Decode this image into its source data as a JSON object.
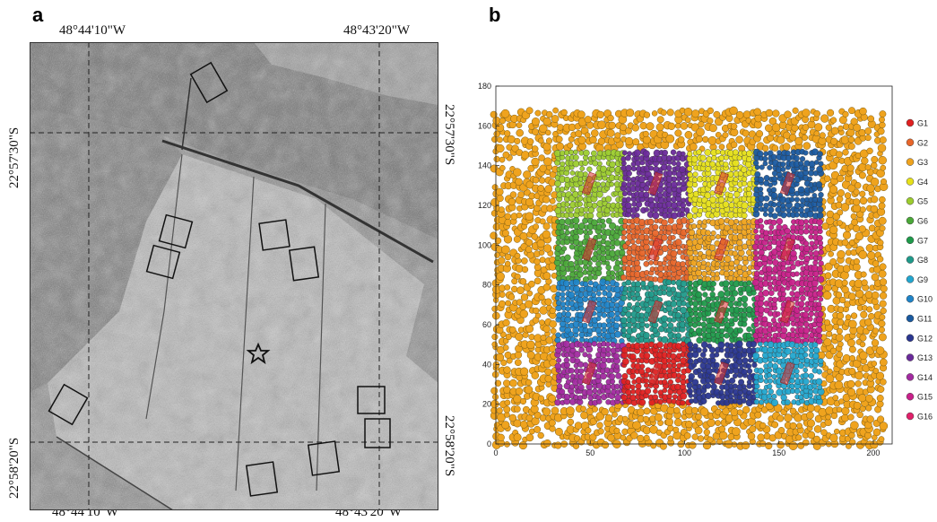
{
  "panel_a": {
    "letter": "a",
    "labels": {
      "top_left": "48°44'10\"W",
      "top_right": "48°43'20\"W",
      "bottom_left": "48°44'10\"W",
      "bottom_right": "48°43'20\"W",
      "left_top": "22°57'30\"S",
      "left_bottom": "22°58'20\"S",
      "right_top": "22°57'30\"S",
      "right_bottom": "22°58'20\"S"
    },
    "background": "grayscale shaded-relief satellite image",
    "marker": "star-icon",
    "plot_count": 13
  },
  "panel_b": {
    "letter": "b"
  },
  "chart_data": {
    "type": "scatter",
    "title": "",
    "xlabel": "",
    "ylabel": "",
    "xlim": [
      0,
      210
    ],
    "ylim": [
      0,
      180
    ],
    "xticks": [
      0,
      50,
      100,
      150,
      200
    ],
    "yticks": [
      0,
      20,
      40,
      60,
      80,
      100,
      120,
      140,
      160,
      180
    ],
    "legend_position": "right",
    "background_series": {
      "name": "G3",
      "x_range": [
        0,
        205
      ],
      "y_range": [
        0,
        168
      ]
    },
    "series": [
      {
        "name": "G1",
        "color": "#e02020"
      },
      {
        "name": "G2",
        "color": "#e8662a"
      },
      {
        "name": "G3",
        "color": "#efa31e"
      },
      {
        "name": "G4",
        "color": "#e6e01a"
      },
      {
        "name": "G5",
        "color": "#9ccc2e"
      },
      {
        "name": "G6",
        "color": "#4aa838"
      },
      {
        "name": "G7",
        "color": "#1f9a4a"
      },
      {
        "name": "G8",
        "color": "#1f9a8a"
      },
      {
        "name": "G9",
        "color": "#22a6cf"
      },
      {
        "name": "G10",
        "color": "#1f84c8"
      },
      {
        "name": "G11",
        "color": "#1a5aa0"
      },
      {
        "name": "G12",
        "color": "#2a3690"
      },
      {
        "name": "G13",
        "color": "#6a2a9a"
      },
      {
        "name": "G14",
        "color": "#a22aa0"
      },
      {
        "name": "G15",
        "color": "#c8208a"
      },
      {
        "name": "G16",
        "color": "#e0206a"
      }
    ],
    "blocks": [
      {
        "group": "G5",
        "x": [
          32,
          67
        ],
        "y": [
          114,
          148
        ]
      },
      {
        "group": "G13",
        "x": [
          67,
          102
        ],
        "y": [
          114,
          148
        ]
      },
      {
        "group": "G4",
        "x": [
          102,
          137
        ],
        "y": [
          114,
          148
        ]
      },
      {
        "group": "G11",
        "x": [
          137,
          172
        ],
        "y": [
          114,
          148
        ]
      },
      {
        "group": "G6",
        "x": [
          32,
          67
        ],
        "y": [
          82,
          114
        ]
      },
      {
        "group": "G2",
        "x": [
          67,
          102
        ],
        "y": [
          82,
          114
        ]
      },
      {
        "group": "G3",
        "x": [
          102,
          137
        ],
        "y": [
          82,
          114
        ]
      },
      {
        "group": "G15",
        "x": [
          137,
          172
        ],
        "y": [
          82,
          114
        ]
      },
      {
        "group": "G10",
        "x": [
          32,
          67
        ],
        "y": [
          51,
          82
        ]
      },
      {
        "group": "G8",
        "x": [
          67,
          102
        ],
        "y": [
          51,
          82
        ]
      },
      {
        "group": "G7",
        "x": [
          102,
          137
        ],
        "y": [
          51,
          82
        ]
      },
      {
        "group": "G15",
        "x": [
          137,
          172
        ],
        "y": [
          51,
          82
        ]
      },
      {
        "group": "G14",
        "x": [
          32,
          67
        ],
        "y": [
          20,
          51
        ]
      },
      {
        "group": "G1",
        "x": [
          67,
          102
        ],
        "y": [
          20,
          51
        ]
      },
      {
        "group": "G12",
        "x": [
          102,
          137
        ],
        "y": [
          20,
          51
        ]
      },
      {
        "group": "G9",
        "x": [
          137,
          172
        ],
        "y": [
          20,
          51
        ]
      }
    ]
  }
}
